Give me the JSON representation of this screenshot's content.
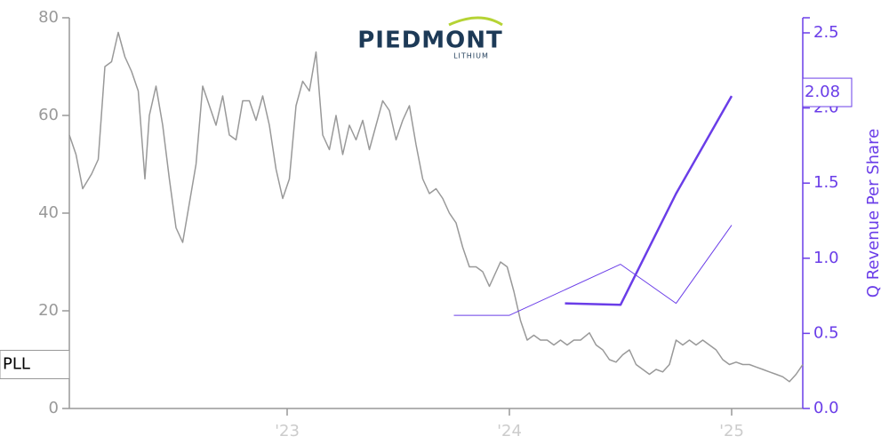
{
  "chart_data": {
    "type": "line",
    "logo": {
      "name": "PIEDMONT",
      "sub": "LITHIUM"
    },
    "y2_label": "Q Revenue Per Share",
    "xlim": [
      2022.02,
      2025.32
    ],
    "xticks": [
      {
        "value": 2023,
        "label": "'23"
      },
      {
        "value": 2024,
        "label": "'24"
      },
      {
        "value": 2025,
        "label": "'25"
      }
    ],
    "ylim": [
      0,
      80
    ],
    "yticks": [
      0,
      20,
      40,
      60,
      80
    ],
    "y2lim": [
      0,
      2.5
    ],
    "y2ticks": [
      {
        "value": 0,
        "label": "0.0"
      },
      0.5,
      {
        "value": 1,
        "label": "1.0"
      },
      1.5,
      {
        "value": 2,
        "label": "2.0"
      },
      2.5
    ],
    "series": [
      {
        "name": "PLL",
        "color": "#999999",
        "x": [
          2022.02,
          2022.05,
          2022.08,
          2022.12,
          2022.15,
          2022.18,
          2022.21,
          2022.24,
          2022.27,
          2022.3,
          2022.33,
          2022.36,
          2022.38,
          2022.41,
          2022.44,
          2022.47,
          2022.5,
          2022.53,
          2022.56,
          2022.59,
          2022.62,
          2022.65,
          2022.68,
          2022.71,
          2022.74,
          2022.77,
          2022.8,
          2022.83,
          2022.86,
          2022.89,
          2022.92,
          2022.95,
          2022.98,
          2023.01,
          2023.04,
          2023.07,
          2023.1,
          2023.13,
          2023.16,
          2023.19,
          2023.22,
          2023.25,
          2023.28,
          2023.31,
          2023.34,
          2023.37,
          2023.4,
          2023.43,
          2023.46,
          2023.49,
          2023.52,
          2023.55,
          2023.58,
          2023.61,
          2023.64,
          2023.67,
          2023.7,
          2023.73,
          2023.76,
          2023.79,
          2023.82,
          2023.85,
          2023.88,
          2023.91,
          2023.94,
          2023.96,
          2023.99,
          2024.02,
          2024.05,
          2024.08,
          2024.11,
          2024.14,
          2024.17,
          2024.2,
          2024.23,
          2024.26,
          2024.29,
          2024.32,
          2024.36,
          2024.39,
          2024.42,
          2024.45,
          2024.48,
          2024.51,
          2024.54,
          2024.57,
          2024.6,
          2024.63,
          2024.66,
          2024.69,
          2024.72,
          2024.75,
          2024.78,
          2024.81,
          2024.84,
          2024.87,
          2024.9,
          2024.93,
          2024.96,
          2024.99,
          2025.02,
          2025.05,
          2025.08,
          2025.11,
          2025.14,
          2025.17,
          2025.2,
          2025.23,
          2025.26,
          2025.29,
          2025.32
        ],
        "values": [
          56,
          52,
          45,
          48,
          51,
          70,
          71,
          77,
          72,
          69,
          65,
          47,
          60,
          66,
          58,
          47,
          37,
          34,
          42,
          50,
          66,
          62,
          58,
          64,
          56,
          55,
          63,
          63,
          59,
          64,
          58,
          49,
          43,
          47,
          62,
          67,
          65,
          73,
          56,
          53,
          60,
          52,
          58,
          55,
          59,
          53,
          58,
          63,
          61,
          55,
          59,
          62,
          54,
          47,
          44,
          45,
          43,
          40,
          38,
          33,
          29,
          29,
          28,
          25,
          28,
          30,
          29,
          24,
          18,
          14,
          15,
          14,
          14,
          13,
          14,
          13,
          14,
          14,
          15.5,
          13,
          12,
          10,
          9.5,
          11,
          12,
          9,
          8,
          7,
          8,
          7.5,
          9,
          14,
          13,
          14,
          13,
          14,
          13,
          12,
          10,
          9,
          9.5,
          9,
          9,
          8.5,
          8,
          7.5,
          7,
          6.5,
          5.5,
          7,
          9
        ]
      },
      {
        "color": "#6a3de8",
        "axis": "y2",
        "width": 1,
        "x": [
          2023.75,
          2024.0,
          2024.5,
          2024.75,
          2025.0
        ],
        "values": [
          0.62,
          0.62,
          0.96,
          0.7,
          1.22
        ]
      },
      {
        "color": "#6a3de8",
        "axis": "y2",
        "width": 2.5,
        "x": [
          2024.25,
          2024.5,
          2024.75,
          2025.0
        ],
        "values": [
          0.7,
          0.69,
          1.43,
          2.08
        ],
        "value_labels": [
          null,
          null,
          null,
          "2.08"
        ]
      }
    ]
  }
}
